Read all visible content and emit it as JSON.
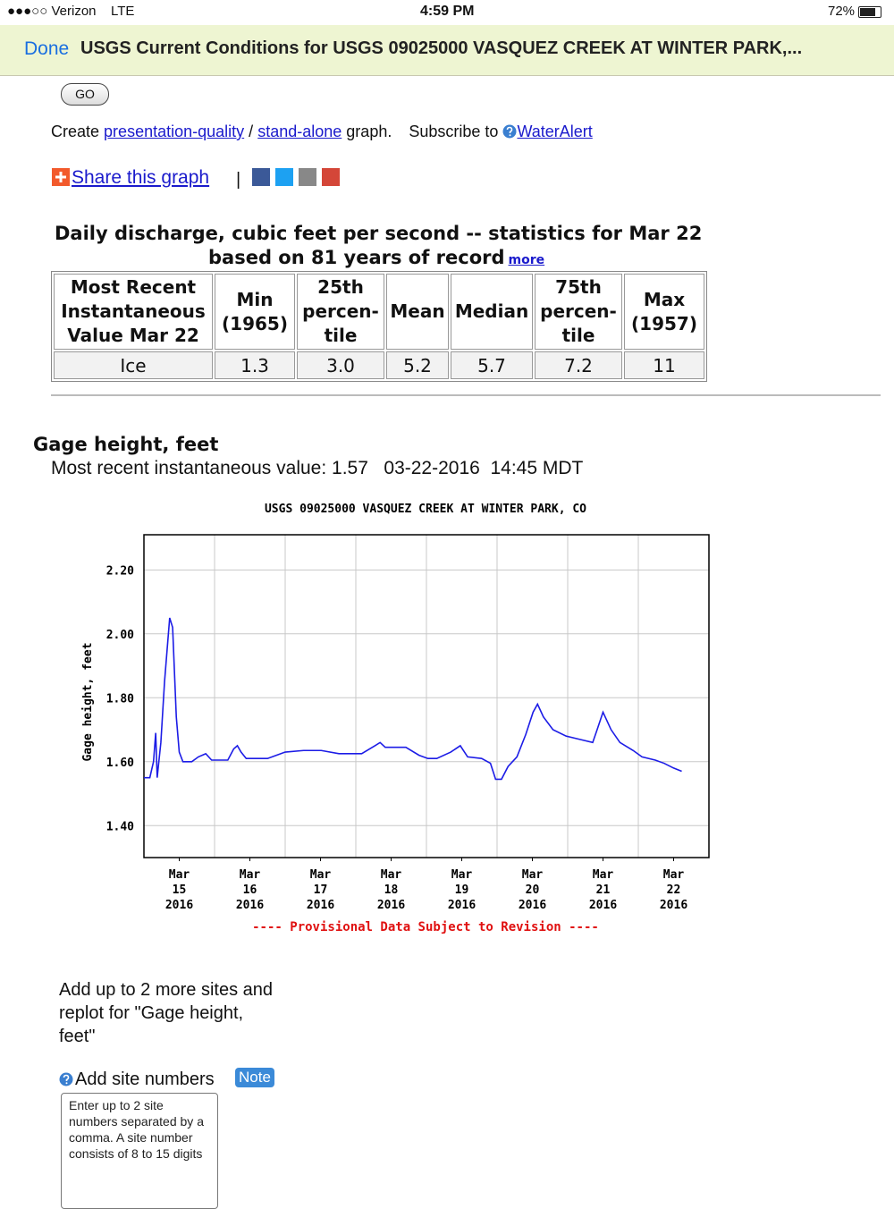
{
  "status_bar": {
    "carrier": "●●●○○ Verizon",
    "network": "LTE",
    "time": "4:59 PM",
    "battery": "72%"
  },
  "nav": {
    "done": "Done",
    "title": "USGS Current Conditions for USGS 09025000 VASQUEZ CREEK AT WINTER PARK,..."
  },
  "go_button": "GO",
  "create_line": {
    "create": "Create",
    "link1": "presentation-quality",
    "sep": "/",
    "link2": "stand-alone",
    "graph": "graph.",
    "subscribe": "Subscribe to",
    "link3": "WaterAlert"
  },
  "share": {
    "link": "Share this graph",
    "sep": "|"
  },
  "stats": {
    "title": "Daily discharge, cubic feet per second -- statistics for Mar 22",
    "subtitle": "based on 81 years of record",
    "more": "more",
    "headers": [
      [
        "Most Recent",
        "Instantaneous",
        "Value Mar 22"
      ],
      [
        "Min",
        "(1965)"
      ],
      [
        "25th",
        "percen-",
        "tile"
      ],
      [
        "Mean"
      ],
      [
        "Median"
      ],
      [
        "75th",
        "percen-",
        "tile"
      ],
      [
        "Max",
        "(1957)"
      ]
    ],
    "row": [
      "Ice",
      "1.3",
      "3.0",
      "5.2",
      "5.7",
      "7.2",
      "11"
    ]
  },
  "gage": {
    "title": "Gage height, feet",
    "recent": "Most recent instantaneous value: 1.57   03-22-2016  14:45 MDT"
  },
  "chart_data": {
    "type": "line",
    "title": "USGS 09025000 VASQUEZ CREEK AT WINTER PARK, CO",
    "y_label": "Gage height, feet",
    "footer": "---- Provisional Data Subject to Revision ----",
    "xlim": [
      "2016-03-15T00:00",
      "2016-03-23T00:00"
    ],
    "xticks": [
      {
        "value": "2016-03-15T12:00",
        "label": [
          "Mar",
          "15",
          "2016"
        ]
      },
      {
        "value": "2016-03-16T12:00",
        "label": [
          "Mar",
          "16",
          "2016"
        ]
      },
      {
        "value": "2016-03-17T12:00",
        "label": [
          "Mar",
          "17",
          "2016"
        ]
      },
      {
        "value": "2016-03-18T12:00",
        "label": [
          "Mar",
          "18",
          "2016"
        ]
      },
      {
        "value": "2016-03-19T12:00",
        "label": [
          "Mar",
          "19",
          "2016"
        ]
      },
      {
        "value": "2016-03-20T12:00",
        "label": [
          "Mar",
          "20",
          "2016"
        ]
      },
      {
        "value": "2016-03-21T12:00",
        "label": [
          "Mar",
          "21",
          "2016"
        ]
      },
      {
        "value": "2016-03-22T12:00",
        "label": [
          "Mar",
          "22",
          "2016"
        ]
      }
    ],
    "xgrid": [
      "2016-03-16T00:00",
      "2016-03-17T00:00",
      "2016-03-18T00:00",
      "2016-03-19T00:00",
      "2016-03-20T00:00",
      "2016-03-21T00:00",
      "2016-03-22T00:00"
    ],
    "ylim": [
      1.3,
      2.31
    ],
    "yticks": [
      {
        "value": 1.4,
        "label": "1.40"
      },
      {
        "value": 1.6,
        "label": "1.60"
      },
      {
        "value": 1.8,
        "label": "1.80"
      },
      {
        "value": 2.0,
        "label": "2.00"
      },
      {
        "value": 2.2,
        "label": "2.20"
      }
    ],
    "grid": true,
    "color": "#1c1ce6",
    "x": [
      "2016-03-15T00:00",
      "2016-03-15T02:00",
      "2016-03-15T03:15",
      "2016-03-15T04:00",
      "2016-03-15T04:30",
      "2016-03-15T05:45",
      "2016-03-15T07:00",
      "2016-03-15T08:45",
      "2016-03-15T09:45",
      "2016-03-15T11:00",
      "2016-03-15T12:00",
      "2016-03-15T13:15",
      "2016-03-15T16:15",
      "2016-03-15T18:30",
      "2016-03-15T21:00",
      "2016-03-15T23:00",
      "2016-03-16T04:30",
      "2016-03-16T06:30",
      "2016-03-16T07:45",
      "2016-03-16T09:00",
      "2016-03-16T10:45",
      "2016-03-16T18:00",
      "2016-03-16T21:00",
      "2016-03-17T00:00",
      "2016-03-17T06:15",
      "2016-03-17T12:15",
      "2016-03-17T18:15",
      "2016-03-18T02:00",
      "2016-03-18T06:30",
      "2016-03-18T08:15",
      "2016-03-18T10:00",
      "2016-03-18T17:00",
      "2016-03-18T21:30",
      "2016-03-19T00:30",
      "2016-03-19T03:30",
      "2016-03-19T08:15",
      "2016-03-19T11:30",
      "2016-03-19T14:00",
      "2016-03-19T18:45",
      "2016-03-19T21:45",
      "2016-03-19T23:30",
      "2016-03-20T01:30",
      "2016-03-20T03:45",
      "2016-03-20T06:45",
      "2016-03-20T09:45",
      "2016-03-20T12:15",
      "2016-03-20T13:45",
      "2016-03-20T15:45",
      "2016-03-20T19:00",
      "2016-03-20T23:30",
      "2016-03-21T04:00",
      "2016-03-21T08:30",
      "2016-03-21T10:00",
      "2016-03-21T12:00",
      "2016-03-21T14:45",
      "2016-03-21T17:45",
      "2016-03-21T22:15",
      "2016-03-22T01:15",
      "2016-03-22T05:45",
      "2016-03-22T08:45",
      "2016-03-22T12:00",
      "2016-03-22T14:45"
    ],
    "values": [
      1.55,
      1.55,
      1.6,
      1.69,
      1.55,
      1.66,
      1.85,
      2.05,
      2.02,
      1.74,
      1.63,
      1.6,
      1.6,
      1.615,
      1.625,
      1.605,
      1.605,
      1.64,
      1.65,
      1.63,
      1.61,
      1.61,
      1.62,
      1.63,
      1.635,
      1.635,
      1.625,
      1.625,
      1.65,
      1.66,
      1.645,
      1.645,
      1.62,
      1.61,
      1.61,
      1.63,
      1.65,
      1.615,
      1.61,
      1.595,
      1.545,
      1.545,
      1.585,
      1.615,
      1.685,
      1.755,
      1.78,
      1.74,
      1.7,
      1.68,
      1.67,
      1.66,
      1.7,
      1.755,
      1.7,
      1.66,
      1.635,
      1.615,
      1.605,
      1.595,
      1.58,
      1.57
    ]
  },
  "add_sites": {
    "text": "Add up to 2 more sites and replot for \"Gage height, feet\"",
    "label": "Add site numbers",
    "note": "Note",
    "placeholder": "Enter up to 2 site numbers separated by a comma. A site number consists of 8 to 15 digits"
  }
}
